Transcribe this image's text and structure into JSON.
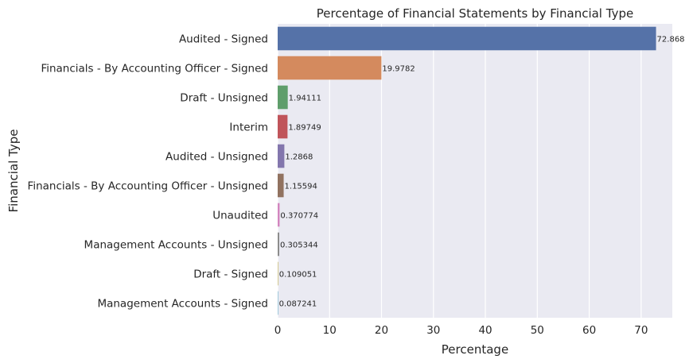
{
  "chart_data": {
    "type": "bar",
    "orientation": "horizontal",
    "title": "Percentage of Financial Statements by Financial Type",
    "xlabel": "Percentage",
    "ylabel": "Financial Type",
    "xlim": [
      0,
      76
    ],
    "xticks": [
      0,
      10,
      20,
      30,
      40,
      50,
      60,
      70
    ],
    "grid": true,
    "categories": [
      "Audited - Signed",
      "Financials - By Accounting Officer - Signed",
      "Draft - Unsigned",
      "Interim",
      "Audited - Unsigned",
      "Financials - By Accounting Officer - Unsigned",
      "Unaudited",
      "Management Accounts - Unsigned",
      "Draft - Signed",
      "Management Accounts - Signed"
    ],
    "values": [
      72.868,
      19.9782,
      1.94111,
      1.89749,
      1.2868,
      1.15594,
      0.370774,
      0.305344,
      0.109051,
      0.087241
    ],
    "value_labels": [
      "72.868",
      "19.9782",
      "1.94111",
      "1.89749",
      "1.2868",
      "1.15594",
      "0.370774",
      "0.305344",
      "0.109051",
      "0.087241"
    ],
    "colors": [
      "#5572a8",
      "#d48a5e",
      "#5f9e6b",
      "#c0545a",
      "#8376ad",
      "#917260",
      "#d385bf",
      "#8c8c8c",
      "#c9bb6a",
      "#6fb3cc"
    ],
    "background": "#eaeaf2"
  }
}
